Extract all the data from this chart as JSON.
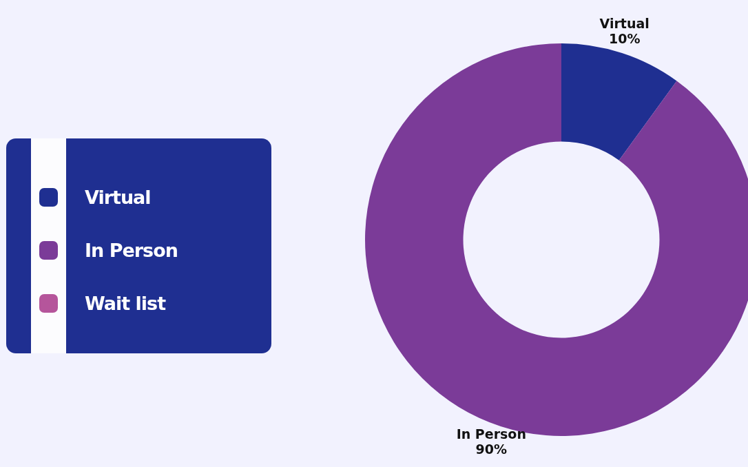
{
  "chart_data": {
    "type": "donut",
    "categories": [
      "Virtual",
      "In Person",
      "Wait list"
    ],
    "values": [
      10,
      90,
      0
    ],
    "colors": [
      "#1f2f91",
      "#7b3b98",
      "#b5559b"
    ],
    "value_labels": [
      "10%",
      "90%",
      null
    ],
    "legend": "left"
  }
}
